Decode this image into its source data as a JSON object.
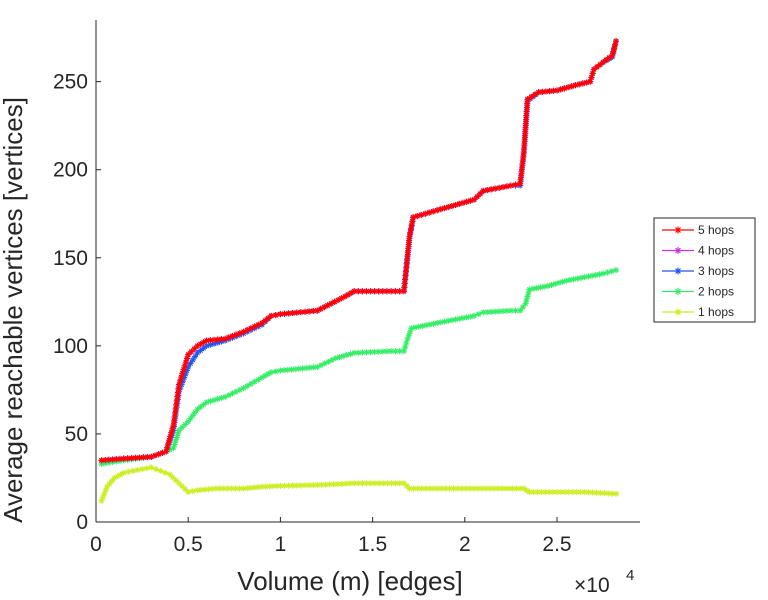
{
  "chart_data": {
    "type": "line",
    "xlabel": "Volume (m) [edges]",
    "ylabel": "Average reachable vertices [vertices]",
    "xlim": [
      0,
      29500
    ],
    "ylim": [
      0,
      285
    ],
    "x_exponent_label": "×10",
    "x_exponent_power": "4",
    "xticks": [
      0,
      5000,
      10000,
      15000,
      20000,
      25000
    ],
    "xtick_labels": [
      "0",
      "0.5",
      "1",
      "1.5",
      "2",
      "2.5"
    ],
    "yticks": [
      0,
      50,
      100,
      150,
      200,
      250
    ],
    "ytick_labels": [
      "0",
      "50",
      "100",
      "150",
      "200",
      "250"
    ],
    "legend_position": "outside-right",
    "series": [
      {
        "name": "5 hops",
        "color": "#ff0000",
        "points": [
          [
            300,
            35
          ],
          [
            1500,
            36
          ],
          [
            3000,
            37
          ],
          [
            3800,
            40
          ],
          [
            4200,
            55
          ],
          [
            4500,
            78
          ],
          [
            5000,
            95
          ],
          [
            5500,
            100
          ],
          [
            6000,
            103
          ],
          [
            7000,
            104
          ],
          [
            8000,
            108
          ],
          [
            9000,
            113
          ],
          [
            9500,
            117
          ],
          [
            10000,
            118
          ],
          [
            12000,
            120
          ],
          [
            13500,
            128
          ],
          [
            14000,
            131
          ],
          [
            16000,
            131
          ],
          [
            16700,
            131
          ],
          [
            17000,
            162
          ],
          [
            17200,
            173
          ],
          [
            18500,
            177
          ],
          [
            19500,
            180
          ],
          [
            20500,
            183
          ],
          [
            21000,
            188
          ],
          [
            22500,
            191
          ],
          [
            23000,
            192
          ],
          [
            23200,
            210
          ],
          [
            23400,
            240
          ],
          [
            24000,
            244
          ],
          [
            25000,
            245
          ],
          [
            26000,
            248
          ],
          [
            26800,
            250
          ],
          [
            27000,
            257
          ],
          [
            27500,
            261
          ],
          [
            28000,
            265
          ],
          [
            28200,
            273
          ]
        ]
      },
      {
        "name": "4 hops",
        "color": "#cc33dd",
        "points": [
          [
            300,
            35
          ],
          [
            1500,
            36
          ],
          [
            3000,
            37
          ],
          [
            3800,
            40
          ],
          [
            4200,
            55
          ],
          [
            4500,
            78
          ],
          [
            5000,
            95
          ],
          [
            5500,
            100
          ],
          [
            6000,
            103
          ],
          [
            7000,
            104
          ],
          [
            8000,
            108
          ],
          [
            9000,
            113
          ],
          [
            9500,
            117
          ],
          [
            10000,
            118
          ],
          [
            12000,
            120
          ],
          [
            13500,
            128
          ],
          [
            14000,
            131
          ],
          [
            16000,
            131
          ],
          [
            16700,
            131
          ],
          [
            17000,
            162
          ],
          [
            17200,
            173
          ],
          [
            18500,
            177
          ],
          [
            19500,
            180
          ],
          [
            20500,
            183
          ],
          [
            21000,
            188
          ],
          [
            22500,
            191
          ],
          [
            23000,
            192
          ],
          [
            23200,
            210
          ],
          [
            23400,
            240
          ],
          [
            24000,
            244
          ],
          [
            25000,
            245
          ],
          [
            26000,
            248
          ],
          [
            26800,
            250
          ],
          [
            27000,
            257
          ],
          [
            27500,
            261
          ],
          [
            28000,
            265
          ],
          [
            28200,
            273
          ]
        ]
      },
      {
        "name": "3 hops",
        "color": "#2255ee",
        "points": [
          [
            300,
            35
          ],
          [
            1500,
            36
          ],
          [
            3000,
            37
          ],
          [
            3800,
            40
          ],
          [
            4200,
            52
          ],
          [
            4500,
            74
          ],
          [
            5000,
            88
          ],
          [
            5500,
            96
          ],
          [
            6000,
            100
          ],
          [
            7000,
            103
          ],
          [
            8000,
            107
          ],
          [
            9000,
            112
          ],
          [
            9500,
            117
          ],
          [
            10000,
            118
          ],
          [
            12000,
            120
          ],
          [
            13500,
            128
          ],
          [
            14000,
            131
          ],
          [
            16000,
            131
          ],
          [
            16700,
            131
          ],
          [
            17000,
            161
          ],
          [
            17200,
            173
          ],
          [
            18500,
            177
          ],
          [
            19500,
            180
          ],
          [
            20500,
            183
          ],
          [
            21000,
            188
          ],
          [
            22500,
            191
          ],
          [
            23000,
            191
          ],
          [
            23200,
            209
          ],
          [
            23400,
            239
          ],
          [
            24000,
            244
          ],
          [
            25000,
            245
          ],
          [
            26000,
            248
          ],
          [
            26800,
            250
          ],
          [
            27000,
            257
          ],
          [
            27500,
            261
          ],
          [
            28000,
            264
          ],
          [
            28200,
            273
          ]
        ]
      },
      {
        "name": "2 hops",
        "color": "#33ee66",
        "points": [
          [
            300,
            33
          ],
          [
            1500,
            35
          ],
          [
            3000,
            37
          ],
          [
            3800,
            40
          ],
          [
            4200,
            42
          ],
          [
            4500,
            52
          ],
          [
            5000,
            57
          ],
          [
            5500,
            64
          ],
          [
            6000,
            68
          ],
          [
            7000,
            71
          ],
          [
            8000,
            76
          ],
          [
            9000,
            82
          ],
          [
            9500,
            85
          ],
          [
            10000,
            86
          ],
          [
            11000,
            87
          ],
          [
            12000,
            88
          ],
          [
            13000,
            93
          ],
          [
            14000,
            96
          ],
          [
            16000,
            97
          ],
          [
            16700,
            97
          ],
          [
            16900,
            104
          ],
          [
            17100,
            110
          ],
          [
            18500,
            113
          ],
          [
            19500,
            115
          ],
          [
            20500,
            117
          ],
          [
            21000,
            119
          ],
          [
            22500,
            120
          ],
          [
            23000,
            120
          ],
          [
            23300,
            124
          ],
          [
            23500,
            132
          ],
          [
            24500,
            134
          ],
          [
            25500,
            137
          ],
          [
            26500,
            139
          ],
          [
            27500,
            141
          ],
          [
            28200,
            143
          ]
        ]
      },
      {
        "name": "1 hops",
        "color": "#ccee22",
        "points": [
          [
            300,
            12
          ],
          [
            600,
            20
          ],
          [
            1000,
            25
          ],
          [
            1500,
            28
          ],
          [
            2000,
            29
          ],
          [
            2500,
            30
          ],
          [
            3000,
            31
          ],
          [
            3500,
            29
          ],
          [
            4000,
            27
          ],
          [
            4500,
            22
          ],
          [
            5000,
            17
          ],
          [
            5500,
            18
          ],
          [
            6500,
            19
          ],
          [
            8000,
            19
          ],
          [
            9000,
            20
          ],
          [
            10000,
            20.5
          ],
          [
            12000,
            21
          ],
          [
            14000,
            22
          ],
          [
            16700,
            22
          ],
          [
            17000,
            19
          ],
          [
            18500,
            19
          ],
          [
            20500,
            19
          ],
          [
            22000,
            19
          ],
          [
            23200,
            19
          ],
          [
            23500,
            17
          ],
          [
            25000,
            17
          ],
          [
            26500,
            17
          ],
          [
            28200,
            16
          ]
        ]
      }
    ]
  }
}
